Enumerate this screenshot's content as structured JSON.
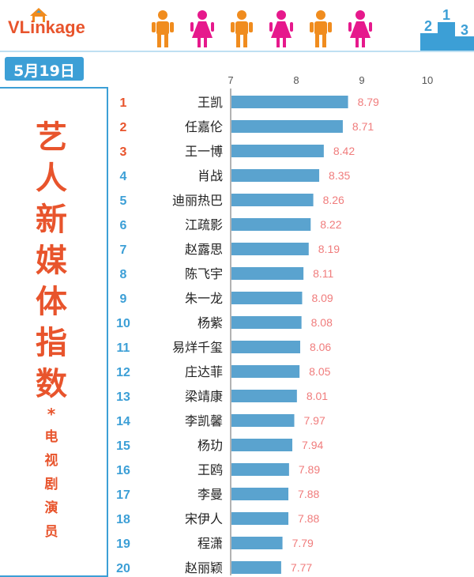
{
  "header": {
    "logo_text": "VLinkage",
    "podium_digits": [
      "2",
      "1",
      "3"
    ],
    "colors": {
      "male": "#f08c1e",
      "female": "#e6198c",
      "podium": "#3c9fd6"
    }
  },
  "date": "5月19日",
  "side_title": [
    "艺",
    "人",
    "新",
    "媒",
    "体",
    "指",
    "数"
  ],
  "side_star": "*",
  "side_subtitle": [
    "电",
    "视",
    "剧",
    "演",
    "员"
  ],
  "colors": {
    "bar": "#5aa3cf",
    "value_text": "#f07c7c",
    "rank_top3": "#e8542c",
    "rank_rest": "#3c9fd6",
    "name_text": "#222222",
    "axis": "#9a9a9a"
  },
  "chart_data": {
    "type": "bar",
    "orientation": "horizontal",
    "xlim": [
      7,
      10
    ],
    "xticks": [
      7,
      8,
      9,
      10
    ],
    "ranks": [
      1,
      2,
      3,
      4,
      5,
      6,
      7,
      8,
      9,
      10,
      11,
      12,
      13,
      14,
      15,
      16,
      17,
      18,
      19,
      20
    ],
    "categories": [
      "王凯",
      "任嘉伦",
      "王一博",
      "肖战",
      "迪丽热巴",
      "江疏影",
      "赵露思",
      "陈飞宇",
      "朱一龙",
      "杨紫",
      "易烊千玺",
      "庄达菲",
      "梁靖康",
      "李凯馨",
      "杨玏",
      "王鸥",
      "李曼",
      "宋伊人",
      "程潇",
      "赵丽颖"
    ],
    "values": [
      8.79,
      8.71,
      8.42,
      8.35,
      8.26,
      8.22,
      8.19,
      8.11,
      8.09,
      8.08,
      8.06,
      8.05,
      8.01,
      7.97,
      7.94,
      7.89,
      7.88,
      7.88,
      7.79,
      7.77
    ],
    "value_labels": [
      "8.79",
      "8.71",
      "8.42",
      "8.35",
      "8.26",
      "8.22",
      "8.19",
      "8.11",
      "8.09",
      "8.08",
      "8.06",
      "8.05",
      "8.01",
      "7.97",
      "7.94",
      "7.89",
      "7.88",
      "7.88",
      "7.79",
      "7.77"
    ],
    "grid": false
  }
}
